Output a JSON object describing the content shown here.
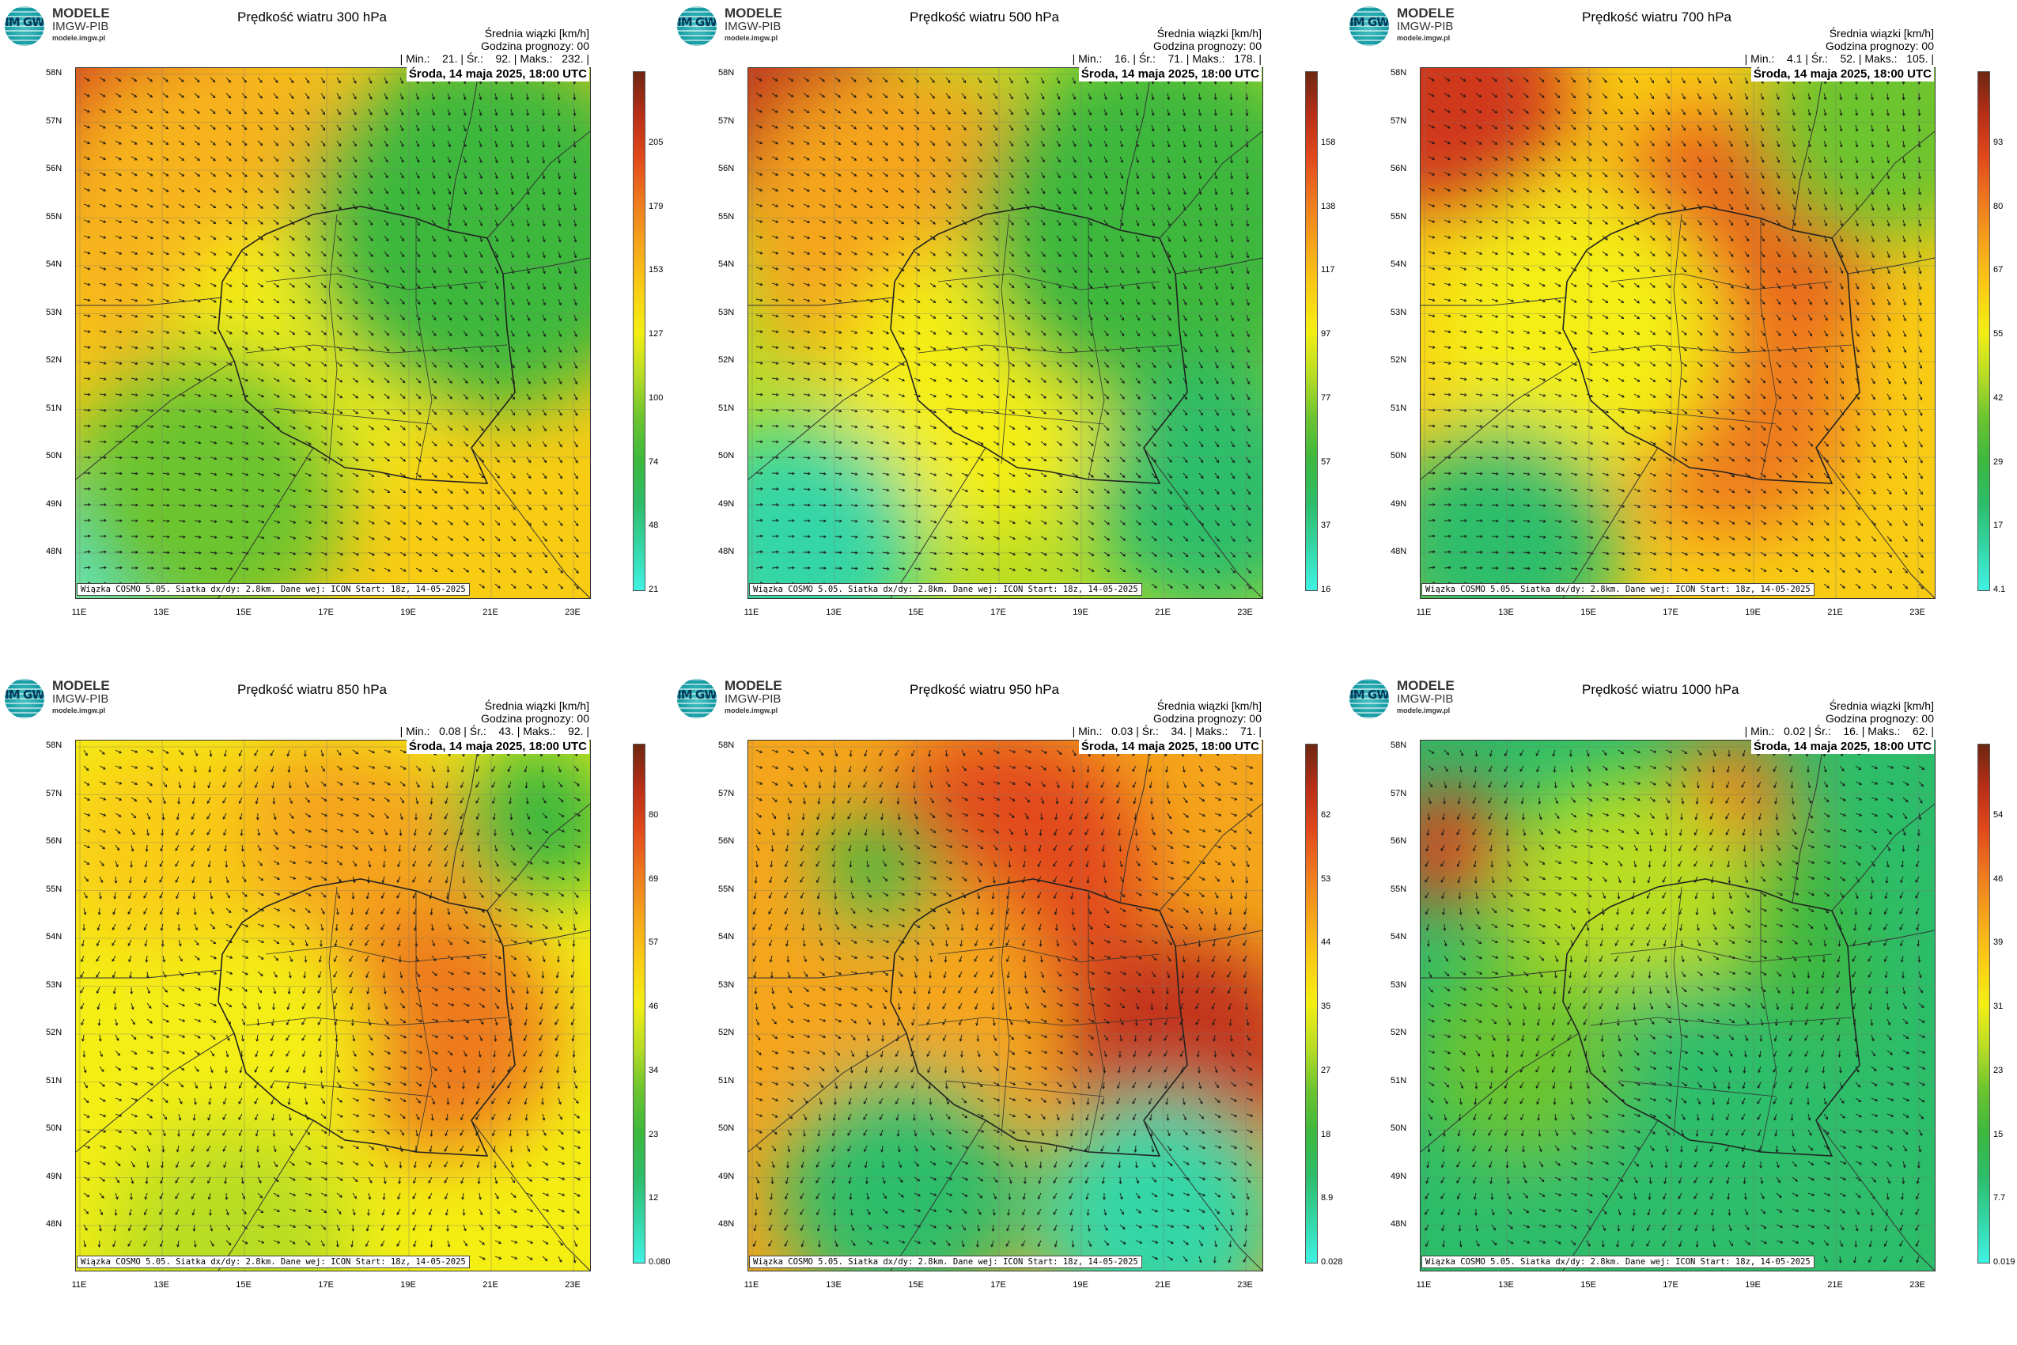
{
  "logo": {
    "line1": "MODELE",
    "line2": "IMGW-PIB",
    "line3": "modele.imgw.pl",
    "mark": "IM GW"
  },
  "common": {
    "info_line1": "Średnia wiązki [km/h]",
    "info_line2": "Godzina prognozy: 00",
    "date": "Środa, 14 maja 2025, 18:00 UTC",
    "footer": "Wiązka COSMO 5.05. Siatka dx/dy: 2.8km. Dane wej: ICON Start: 18z, 14-05-2025",
    "lat_labels": [
      "58N",
      "57N",
      "56N",
      "55N",
      "54N",
      "53N",
      "52N",
      "51N",
      "50N",
      "49N",
      "48N"
    ],
    "lon_labels": [
      "11E",
      "13E",
      "15E",
      "17E",
      "19E",
      "21E",
      "23E"
    ]
  },
  "panels": [
    {
      "title": "Prędkość wiatru 300 hPa",
      "stats": "| Min.:    21. | Śr.:    92. | Maks.:   232. |",
      "cbar_labels": [
        "205",
        "179",
        "153",
        "127",
        "100",
        "74",
        "48",
        "21"
      ]
    },
    {
      "title": "Prędkość wiatru 500 hPa",
      "stats": "| Min.:    16. | Śr.:    71. | Maks.:   178. |",
      "cbar_labels": [
        "158",
        "138",
        "117",
        "97",
        "77",
        "57",
        "37",
        "16"
      ]
    },
    {
      "title": "Prędkość wiatru 700 hPa",
      "stats": "| Min.:    4.1 | Śr.:    52. | Maks.:   105. |",
      "cbar_labels": [
        "93",
        "80",
        "67",
        "55",
        "42",
        "29",
        "17",
        "4.1"
      ]
    },
    {
      "title": "Prędkość wiatru 850 hPa",
      "stats": "| Min.:   0.08 | Śr.:    43. | Maks.:    92. |",
      "cbar_labels": [
        "80",
        "69",
        "57",
        "46",
        "34",
        "23",
        "12",
        "0.080"
      ]
    },
    {
      "title": "Prędkość wiatru 950 hPa",
      "stats": "| Min.:   0.03 | Śr.:    34. | Maks.:    71. |",
      "cbar_labels": [
        "62",
        "53",
        "44",
        "35",
        "27",
        "18",
        "8.9",
        "0.028"
      ]
    },
    {
      "title": "Prędkość wiatru 1000 hPa",
      "stats": "| Min.:   0.02 | Śr.:    16. | Maks.:    62. |",
      "cbar_labels": [
        "54",
        "46",
        "39",
        "31",
        "23",
        "15",
        "7.7",
        "0.019"
      ]
    }
  ],
  "colors": {
    "colorbar": [
      "#3ff2e3",
      "#34d6a6",
      "#2dbd6a",
      "#3cb83e",
      "#6cc42f",
      "#b9dd24",
      "#f4ee13",
      "#f9cc14",
      "#f5a51b",
      "#ee7a1f",
      "#e24a1b",
      "#b82e16",
      "#6e2712"
    ]
  }
}
